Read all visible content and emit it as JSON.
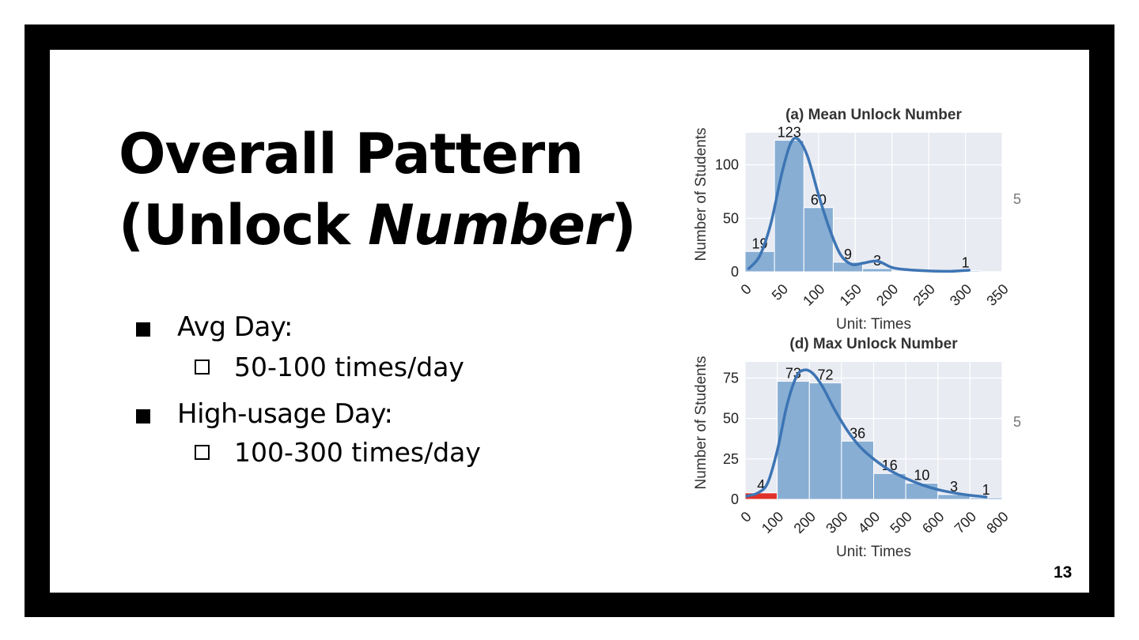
{
  "slide": {
    "title_line1": "Overall Pattern",
    "title_line2_prefix": "(Unlock ",
    "title_line2_italic": "Number",
    "title_line2_suffix": ")",
    "bullets": [
      {
        "label": "Avg Day:",
        "sub": "50-100 times/day"
      },
      {
        "label": "High-usage Day:",
        "sub": "100-300 times/day"
      }
    ],
    "page_number": "13",
    "stray_marks": [
      "5",
      "5"
    ]
  },
  "colors": {
    "bar": "#88aed4",
    "kde": "#3d75b4",
    "highlight": "#e0302a",
    "plot_bg": "#e9ebf2",
    "grid": "#ffffff"
  },
  "chart_data": [
    {
      "type": "bar",
      "title": "(a) Mean Unlock Number",
      "xlabel": "Unit: Times",
      "ylabel": "Number of Students",
      "xlim": [
        0,
        350
      ],
      "ylim": [
        0,
        130
      ],
      "x_ticks": [
        0,
        50,
        100,
        150,
        200,
        250,
        300,
        350
      ],
      "y_ticks": [
        0,
        50,
        100
      ],
      "grid": true,
      "bins": [
        {
          "start": 0,
          "end": 40,
          "value": 19,
          "label": "19"
        },
        {
          "start": 40,
          "end": 80,
          "value": 123,
          "label": "123"
        },
        {
          "start": 80,
          "end": 120,
          "value": 60,
          "label": "60"
        },
        {
          "start": 120,
          "end": 160,
          "value": 9,
          "label": "9"
        },
        {
          "start": 160,
          "end": 200,
          "value": 3,
          "label": "3"
        },
        {
          "start": 200,
          "end": 240,
          "value": 0,
          "label": ""
        },
        {
          "start": 240,
          "end": 280,
          "value": 0,
          "label": ""
        },
        {
          "start": 280,
          "end": 320,
          "value": 1,
          "label": "1"
        }
      ],
      "kde": {
        "x": [
          5,
          20,
          35,
          50,
          62,
          72,
          85,
          100,
          115,
          130,
          145,
          160,
          180,
          200,
          220,
          250,
          280,
          305
        ],
        "y": [
          3,
          15,
          45,
          92,
          120,
          124,
          108,
          72,
          40,
          16,
          7,
          8,
          10,
          4,
          2,
          0.8,
          0.5,
          1.5
        ]
      }
    },
    {
      "type": "bar",
      "title": "(d) Max Unlock Number",
      "xlabel": "Unit: Times",
      "ylabel": "Number of Students",
      "xlim": [
        0,
        800
      ],
      "ylim": [
        0,
        85
      ],
      "x_ticks": [
        0,
        100,
        200,
        300,
        400,
        500,
        600,
        700,
        800
      ],
      "y_ticks": [
        0,
        25,
        50,
        75
      ],
      "grid": true,
      "bins": [
        {
          "start": 0,
          "end": 100,
          "value": 4,
          "label": "4",
          "highlight": true
        },
        {
          "start": 100,
          "end": 200,
          "value": 73,
          "label": "73"
        },
        {
          "start": 200,
          "end": 300,
          "value": 72,
          "label": "72"
        },
        {
          "start": 300,
          "end": 400,
          "value": 36,
          "label": "36"
        },
        {
          "start": 400,
          "end": 500,
          "value": 16,
          "label": "16"
        },
        {
          "start": 500,
          "end": 600,
          "value": 10,
          "label": "10"
        },
        {
          "start": 600,
          "end": 700,
          "value": 3,
          "label": "3"
        },
        {
          "start": 700,
          "end": 800,
          "value": 1,
          "label": "1"
        }
      ],
      "kde": {
        "x": [
          5,
          40,
          70,
          100,
          130,
          160,
          185,
          210,
          240,
          280,
          320,
          360,
          400,
          450,
          500,
          550,
          600,
          650,
          700,
          750
        ],
        "y": [
          2,
          4,
          10,
          30,
          58,
          76,
          80,
          78,
          70,
          55,
          42,
          32,
          25,
          18,
          13,
          9,
          6,
          4,
          2.5,
          1.5
        ]
      }
    }
  ]
}
